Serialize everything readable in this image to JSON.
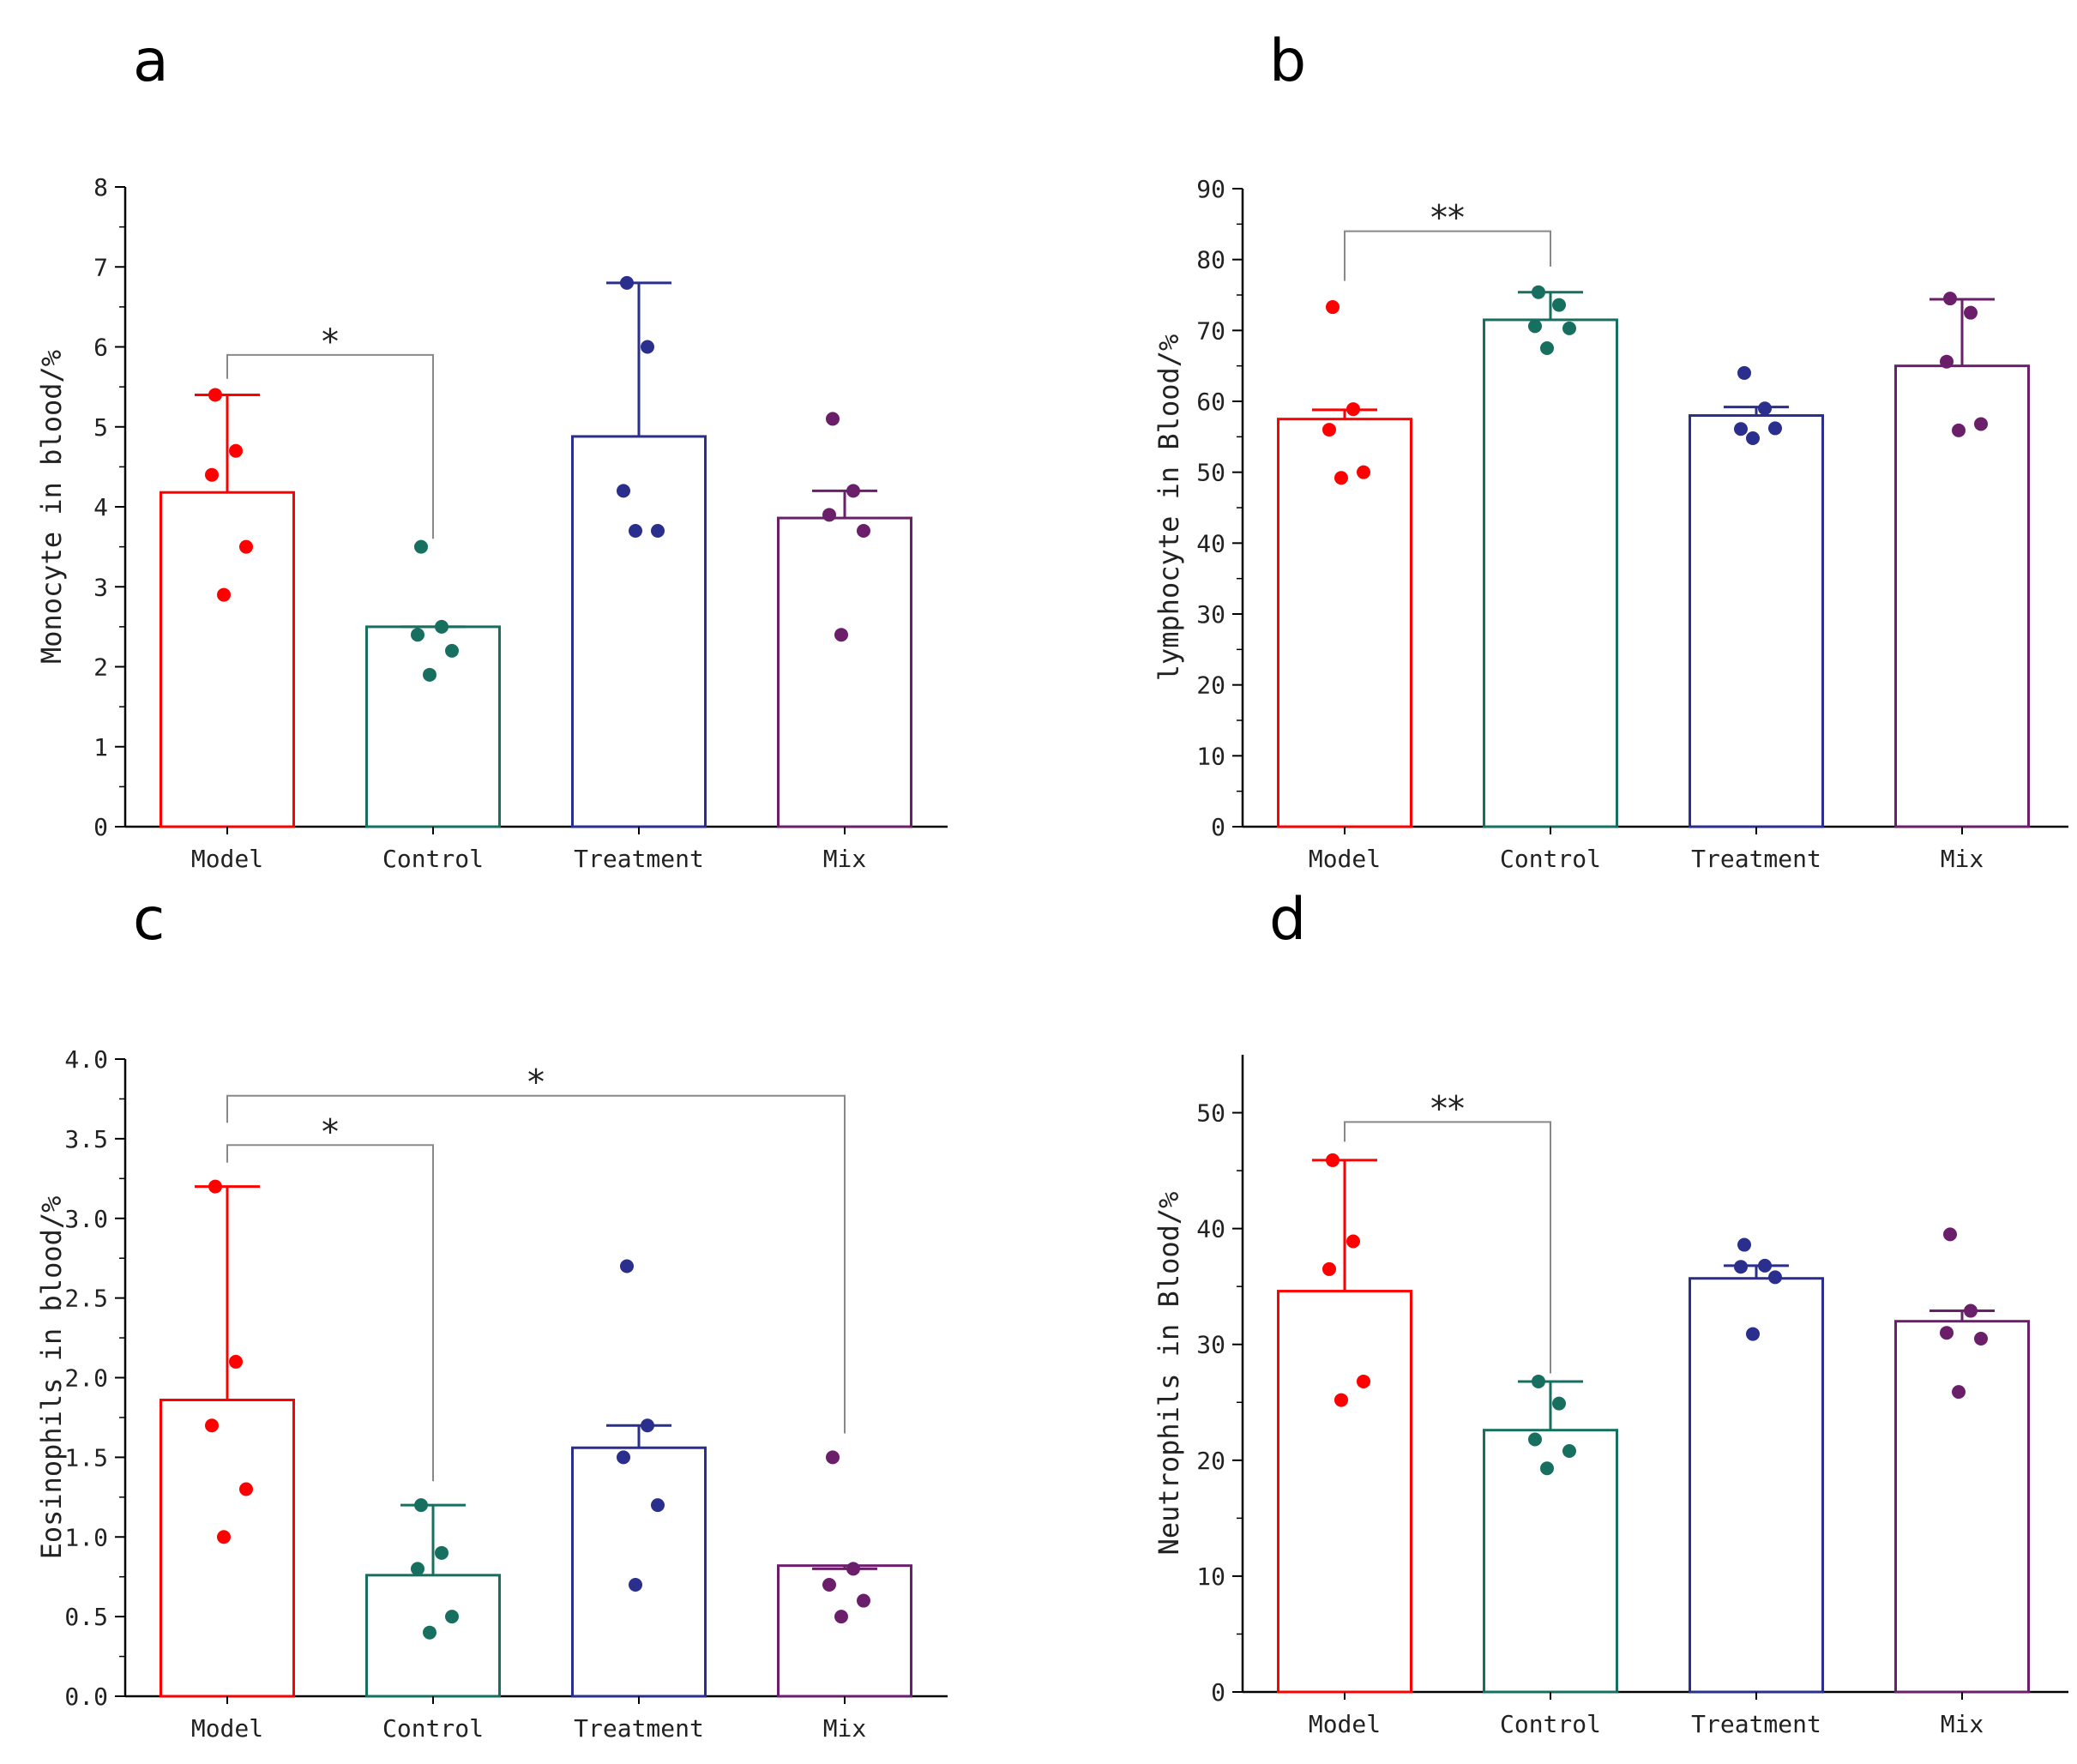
{
  "figure": {
    "panels": [
      "a",
      "b",
      "c",
      "d"
    ]
  },
  "chart_data": [
    {
      "panel": "a",
      "type": "bar",
      "title": "",
      "xlabel": "",
      "ylabel": "Monocyte in blood/%",
      "categories": [
        "Model",
        "Control",
        "Treatment",
        "Mix"
      ],
      "colors": [
        "#ff0000",
        "#17705f",
        "#2a2e8c",
        "#6b1f6b"
      ],
      "values": [
        4.18,
        2.5,
        4.88,
        3.86
      ],
      "error_upper": [
        5.4,
        2.5,
        6.8,
        4.2
      ],
      "points": [
        [
          5.4,
          4.7,
          4.4,
          3.5,
          2.9
        ],
        [
          3.5,
          2.5,
          2.4,
          2.2,
          1.9
        ],
        [
          6.8,
          6.0,
          4.2,
          3.7,
          3.7
        ],
        [
          5.1,
          4.2,
          3.9,
          3.7,
          2.4
        ]
      ],
      "ylim": [
        0,
        8
      ],
      "yticks": [
        0,
        1,
        2,
        3,
        4,
        5,
        6,
        7,
        8
      ],
      "ytick_labels": [
        "0",
        "1",
        "2",
        "3",
        "4",
        "5",
        "6",
        "7",
        "8"
      ],
      "significance": [
        {
          "from": 0,
          "to": 1,
          "label": "*",
          "level": 5.9,
          "left_end": 5.6,
          "right_end": 3.6
        }
      ]
    },
    {
      "panel": "b",
      "type": "bar",
      "title": "",
      "xlabel": "",
      "ylabel": "lymphocyte in Blood/%",
      "categories": [
        "Model",
        "Control",
        "Treatment",
        "Mix"
      ],
      "colors": [
        "#ff0000",
        "#17705f",
        "#2a2e8c",
        "#6b1f6b"
      ],
      "values": [
        57.5,
        71.5,
        58.0,
        65.0
      ],
      "error_upper": [
        58.8,
        75.4,
        59.2,
        74.4
      ],
      "points": [
        [
          73.3,
          58.9,
          56.0,
          50.0,
          49.2
        ],
        [
          75.4,
          73.6,
          70.6,
          70.3,
          67.5
        ],
        [
          64.0,
          59.0,
          56.1,
          56.2,
          54.8
        ],
        [
          74.5,
          72.5,
          65.6,
          56.8,
          55.9
        ]
      ],
      "ylim": [
        0,
        90
      ],
      "yticks": [
        0,
        10,
        20,
        30,
        40,
        50,
        60,
        70,
        80,
        90
      ],
      "ytick_labels": [
        "0",
        "10",
        "20",
        "30",
        "40",
        "50",
        "60",
        "70",
        "80",
        "90"
      ],
      "significance": [
        {
          "from": 0,
          "to": 1,
          "label": "**",
          "level": 84,
          "left_end": 77,
          "right_end": 79
        }
      ]
    },
    {
      "panel": "c",
      "type": "bar",
      "title": "",
      "xlabel": "",
      "ylabel": "Eosinophils in blood/%",
      "categories": [
        "Model",
        "Control",
        "Treatment",
        "Mix"
      ],
      "colors": [
        "#ff0000",
        "#17705f",
        "#2a2e8c",
        "#6b1f6b"
      ],
      "values": [
        1.86,
        0.76,
        1.56,
        0.82
      ],
      "error_upper": [
        3.2,
        1.2,
        1.7,
        0.8
      ],
      "points": [
        [
          3.2,
          2.1,
          1.7,
          1.3,
          1.0
        ],
        [
          1.2,
          0.9,
          0.8,
          0.5,
          0.4
        ],
        [
          2.7,
          1.7,
          1.5,
          1.2,
          0.7
        ],
        [
          1.5,
          0.8,
          0.7,
          0.6,
          0.5
        ]
      ],
      "ylim": [
        0,
        4
      ],
      "yticks": [
        0,
        0.5,
        1.0,
        1.5,
        2.0,
        2.5,
        3.0,
        3.5,
        4.0
      ],
      "ytick_labels": [
        "0.0",
        "0.5",
        "1.0",
        "1.5",
        "2.0",
        "2.5",
        "3.0",
        "3.5",
        "4.0"
      ],
      "significance": [
        {
          "from": 0,
          "to": 1,
          "label": "*",
          "level": 3.46,
          "left_end": 3.35,
          "right_end": 1.35
        },
        {
          "from": 0,
          "to": 3,
          "label": "*",
          "level": 3.77,
          "left_end": 3.6,
          "right_end": 1.65
        }
      ]
    },
    {
      "panel": "d",
      "type": "bar",
      "title": "",
      "xlabel": "",
      "ylabel": "Neutrophils in Blood/%",
      "categories": [
        "Model",
        "Control",
        "Treatment",
        "Mix"
      ],
      "colors": [
        "#ff0000",
        "#17705f",
        "#2a2e8c",
        "#6b1f6b"
      ],
      "values": [
        34.6,
        22.6,
        35.7,
        32.0
      ],
      "error_upper": [
        45.9,
        26.8,
        36.8,
        32.9
      ],
      "points": [
        [
          45.9,
          38.9,
          36.5,
          26.8,
          25.2
        ],
        [
          26.8,
          24.9,
          21.8,
          20.8,
          19.3
        ],
        [
          38.6,
          36.8,
          36.7,
          35.8,
          30.9
        ],
        [
          39.5,
          32.9,
          31.0,
          30.5,
          25.9
        ]
      ],
      "ylim": [
        0,
        55
      ],
      "yticks": [
        0,
        10,
        20,
        30,
        40,
        50
      ],
      "ytick_labels": [
        "0",
        "10",
        "20",
        "30",
        "40",
        "50"
      ],
      "significance": [
        {
          "from": 0,
          "to": 1,
          "label": "**",
          "level": 49.2,
          "left_end": 47.5,
          "right_end": 27.5
        }
      ]
    }
  ]
}
